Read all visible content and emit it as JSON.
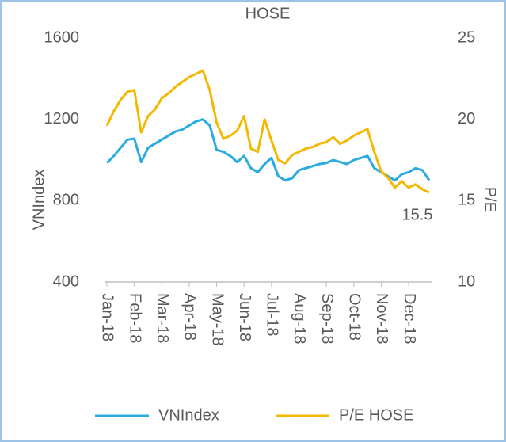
{
  "chart_data": {
    "type": "line",
    "title": "HOSE",
    "y_label": "VNIndex",
    "y2_label": "P/E",
    "annotation": "15.5",
    "categories": [
      "Jan-18",
      null,
      null,
      null,
      "Feb-18",
      null,
      null,
      null,
      "Mar-18",
      null,
      null,
      null,
      "Apr-18",
      null,
      null,
      null,
      "May-18",
      null,
      null,
      null,
      "Jun-18",
      null,
      null,
      null,
      "Jul-18",
      null,
      null,
      null,
      "Aug-18",
      null,
      null,
      null,
      "Sep-18",
      null,
      null,
      null,
      "Oct-18",
      null,
      null,
      null,
      "Nov-18",
      null,
      null,
      null,
      "Dec-18",
      null,
      null,
      null
    ],
    "series": [
      {
        "name": "VNIndex",
        "color": "#29abe2",
        "values": [
          985,
          1020,
          1060,
          1100,
          1105,
          990,
          1060,
          1080,
          1100,
          1120,
          1140,
          1150,
          1170,
          1190,
          1200,
          1170,
          1050,
          1040,
          1020,
          990,
          1020,
          960,
          940,
          980,
          1010,
          920,
          900,
          910,
          950,
          960,
          970,
          980,
          985,
          1000,
          990,
          980,
          1000,
          1010,
          1020,
          960,
          940,
          920,
          900,
          930,
          940,
          960,
          950,
          900
        ]
      },
      {
        "name": "P/E HOSE",
        "color": "#f5b800",
        "axis": "y2",
        "values": [
          19.6,
          20.5,
          21.2,
          21.7,
          21.8,
          19.2,
          20.2,
          20.6,
          21.3,
          21.6,
          22.0,
          22.3,
          22.6,
          22.8,
          23.0,
          21.8,
          19.8,
          18.8,
          19.0,
          19.3,
          20.2,
          18.2,
          18.0,
          20.0,
          18.7,
          17.5,
          17.3,
          17.8,
          18.0,
          18.2,
          18.3,
          18.5,
          18.6,
          18.9,
          18.5,
          18.7,
          19.0,
          19.2,
          19.4,
          18.0,
          16.8,
          16.4,
          15.8,
          16.2,
          15.8,
          16.0,
          15.7,
          15.5
        ]
      }
    ],
    "ylim": [
      400,
      1600
    ],
    "yticks": [
      400,
      800,
      1200,
      1600
    ],
    "y2lim": [
      10,
      25
    ],
    "y2ticks": [
      10,
      15,
      20,
      25
    ],
    "grid": false,
    "legend": "bottom"
  }
}
